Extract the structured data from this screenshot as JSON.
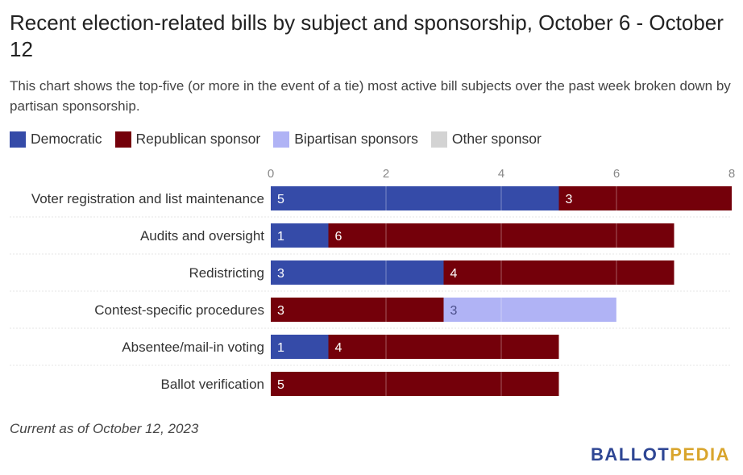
{
  "header": {
    "title": "Recent election-related bills by subject and sponsorship, October 6 - October 12",
    "subtitle": "This chart shows the top-five (or more in the event of a tie) most active bill subjects over the past week broken down by partisan sponsorship."
  },
  "legend": [
    {
      "label": "Democratic",
      "color": "#354ba8"
    },
    {
      "label": "Republican sponsor",
      "color": "#74000a"
    },
    {
      "label": "Bipartisan sponsors",
      "color": "#b0b3f5"
    },
    {
      "label": "Other sponsor",
      "color": "#d3d3d3"
    }
  ],
  "footer": {
    "note": "Current as of October 12, 2023",
    "logo_ballot": "BALLOT",
    "logo_pedia": "PEDIA"
  },
  "chart_data": {
    "type": "bar",
    "orientation": "horizontal",
    "stacked": true,
    "categories": [
      "Voter registration and list maintenance",
      "Audits and oversight",
      "Redistricting",
      "Contest-specific procedures",
      "Absentee/mail-in voting",
      "Ballot verification"
    ],
    "series": [
      {
        "name": "Democratic",
        "color": "#354ba8",
        "label_color": "#ffffff",
        "values": [
          5,
          1,
          3,
          0,
          1,
          0
        ]
      },
      {
        "name": "Republican sponsor",
        "color": "#74000a",
        "label_color": "#ffffff",
        "values": [
          3,
          6,
          4,
          3,
          4,
          5
        ]
      },
      {
        "name": "Bipartisan sponsors",
        "color": "#b0b3f5",
        "label_color": "#4a4e8a",
        "values": [
          0,
          0,
          0,
          3,
          0,
          0
        ]
      },
      {
        "name": "Other sponsor",
        "color": "#d3d3d3",
        "label_color": "#333333",
        "values": [
          0,
          0,
          0,
          0,
          0,
          0
        ]
      }
    ],
    "xlim": [
      0,
      8
    ],
    "xticks": [
      0,
      2,
      4,
      6,
      8
    ],
    "grid": true,
    "legend_position": "top-left"
  }
}
